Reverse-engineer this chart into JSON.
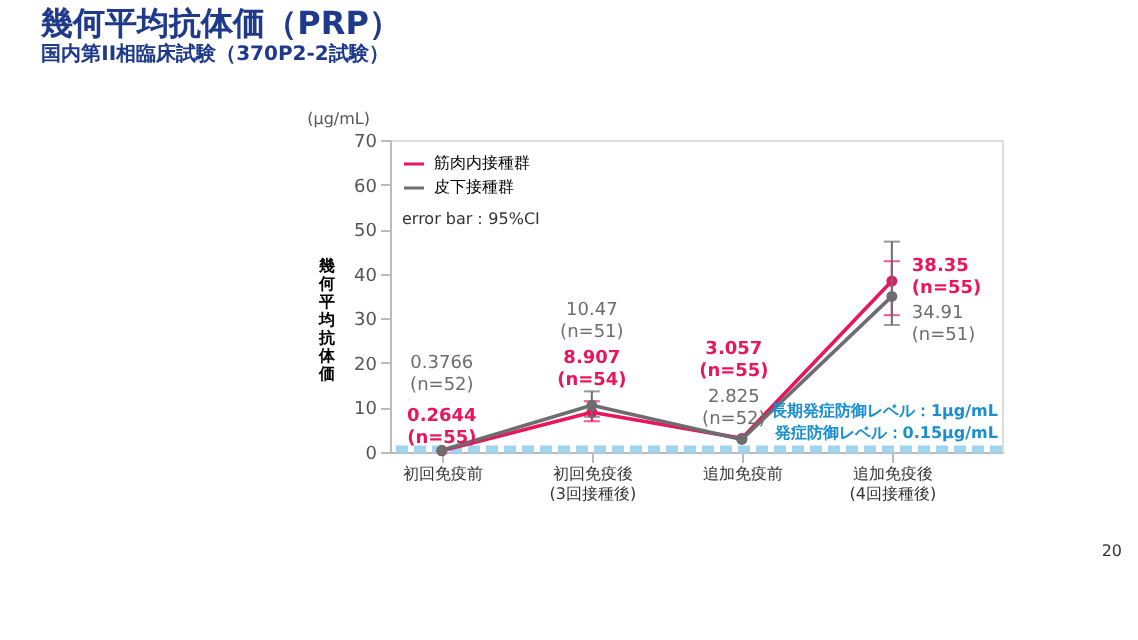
{
  "chart_data": {
    "type": "line",
    "title": "幾何平均抗体価（PRP）",
    "subtitle": "国内第II相臨床試験（370P2-2試験）",
    "ylabel": "幾何平均抗体価",
    "categories": [
      "初回免疫前",
      "初回免疫後\n(3回接種後)",
      "追加免疫前",
      "追加免疫後\n(4回接種後)"
    ],
    "series": [
      {
        "name": "筋肉内接種群",
        "color": "#e8175d",
        "values": [
          0.2644,
          8.907,
          3.057,
          38.35
        ],
        "errors": [
          null,
          [
            6.9,
            11.4
          ],
          null,
          [
            30.7,
            42.8
          ]
        ],
        "value_labels": [
          "0.2644\n(n=55)",
          "8.907\n(n=54)",
          "3.057\n(n=55)",
          "38.35\n(n=55)"
        ]
      },
      {
        "name": "皮下接種群",
        "color": "#6d6d6d",
        "values": [
          0.3766,
          10.47,
          2.825,
          34.91
        ],
        "errors": [
          null,
          [
            7.9,
            13.6
          ],
          null,
          [
            28.5,
            47.2
          ]
        ],
        "value_labels": [
          "0.3766\n(n=52)",
          "10.47\n(n=51)",
          "2.825\n(n=52)",
          "34.91\n(n=51)"
        ]
      }
    ],
    "ylim": [
      0,
      70
    ],
    "yticks": [
      0,
      10,
      20,
      30,
      40,
      50,
      60,
      70
    ],
    "ref_lines": [
      {
        "axis": "y",
        "value": 1,
        "label": "長期発症防御レベル：1μg/mL",
        "color": "#9fd3ee",
        "line_style": "dashed"
      },
      {
        "axis": "y",
        "value": 0.15,
        "label": "発症防御レベル：0.15μg/mL",
        "color": "#9fd3ee",
        "line_style": "dashed"
      }
    ],
    "annotations": [
      "(μg/mL)",
      "error bar：95%CI",
      "20"
    ],
    "legend": "top left",
    "marker": "circle",
    "line_style": "solid",
    "grid": false
  }
}
